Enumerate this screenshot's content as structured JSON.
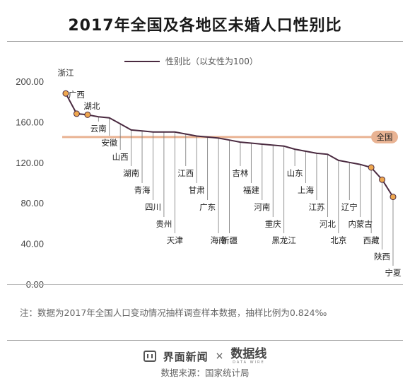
{
  "title": "2017年全国及各地区未婚人口性别比",
  "chart_data": {
    "type": "line",
    "series": [
      {
        "name": "性别比（以女性为100）",
        "color": "#4a2a40",
        "categories": [
          "浙江",
          "广西",
          "湖北",
          "云南",
          "安徽",
          "山西",
          "湖南",
          "青海",
          "四川",
          "贵州",
          "天津",
          "江西",
          "甘肃",
          "广东",
          "海南",
          "新疆",
          "吉林",
          "福建",
          "河南",
          "重庆",
          "黑龙江",
          "山东",
          "上海",
          "江苏",
          "河北",
          "北京",
          "辽宁",
          "内蒙古",
          "西藏",
          "陕西",
          "宁夏"
        ],
        "values": [
          188,
          168,
          167,
          165,
          164,
          158,
          152,
          151,
          150,
          150,
          150,
          148,
          146,
          145,
          144,
          142,
          140,
          139,
          138,
          137,
          136,
          133,
          131,
          129,
          128,
          122,
          120,
          118,
          115,
          103,
          86
        ]
      }
    ],
    "reference_line": {
      "label": "全国",
      "value": 145,
      "color": "#e9b393"
    },
    "highlighted_points": [
      "浙江",
      "广西",
      "湖北",
      "西藏",
      "陕西",
      "宁夏"
    ],
    "marker_color": "#eea74f",
    "y_ticks": [
      "0.00",
      "40.00",
      "80.00",
      "120.00",
      "160.00",
      "200.00"
    ],
    "ylim": [
      0,
      200
    ],
    "grid": false,
    "legend_position": "top-center"
  },
  "note": "注：数据为2017年全国人口变动情况抽样调查样本数据，抽样比例为0.824‰",
  "footer": {
    "brand": "界面新闻",
    "times": "×",
    "brand2": "数据线",
    "brand2_sub": "DATA WIRE"
  },
  "source": "数据来源：国家统计局"
}
